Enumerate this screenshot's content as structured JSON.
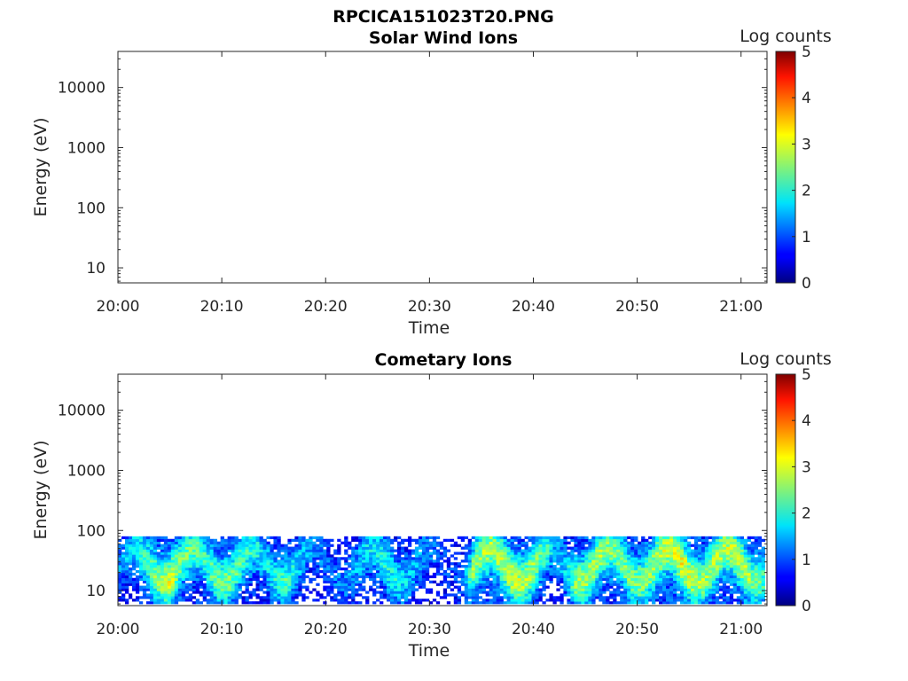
{
  "figure": {
    "title": "RPCICA151023T20.PNG"
  },
  "chart_data": [
    {
      "type": "heatmap",
      "title": "Solar Wind Ions",
      "xlabel": "Time",
      "ylabel": "Energy (eV)",
      "x_ticks": [
        "20:00",
        "20:10",
        "20:20",
        "20:30",
        "20:40",
        "20:50",
        "21:00"
      ],
      "x_range_minutes": [
        0,
        62.5
      ],
      "y_ticks": [
        "10",
        "100",
        "1000",
        "10000"
      ],
      "y_range_log10": [
        0.75,
        4.6
      ],
      "y_scale": "log",
      "colorbar": {
        "label": "Log counts",
        "ticks": [
          "0",
          "1",
          "2",
          "3",
          "4",
          "5"
        ],
        "range": [
          0,
          5
        ],
        "colormap": "jet"
      },
      "data_summary": "no counts recorded (panel empty)"
    },
    {
      "type": "heatmap",
      "title": "Cometary Ions",
      "xlabel": "Time",
      "ylabel": "Energy (eV)",
      "x_ticks": [
        "20:00",
        "20:10",
        "20:20",
        "20:30",
        "20:40",
        "20:50",
        "21:00"
      ],
      "x_range_minutes": [
        0,
        62.5
      ],
      "y_ticks": [
        "10",
        "100",
        "1000",
        "10000"
      ],
      "y_range_log10": [
        0.75,
        4.6
      ],
      "y_scale": "log",
      "colorbar": {
        "label": "Log counts",
        "ticks": [
          "0",
          "1",
          "2",
          "3",
          "4",
          "5"
        ],
        "range": [
          0,
          5
        ],
        "colormap": "jet"
      },
      "energy_band_eV": [
        6,
        80
      ],
      "time_profile": {
        "minutes": [
          0,
          2,
          4,
          5,
          6,
          8,
          10,
          12,
          14,
          16,
          18,
          20,
          22,
          24,
          26,
          28,
          30,
          31,
          32,
          33,
          34,
          36,
          38,
          40,
          41,
          42,
          43,
          44,
          46,
          48,
          50,
          52,
          54,
          56,
          58,
          60,
          62
        ],
        "peak_log_counts": [
          1.2,
          1.8,
          2.5,
          2.7,
          2.2,
          2.0,
          2.3,
          2.0,
          1.6,
          2.0,
          1.3,
          1.0,
          1.2,
          1.6,
          1.8,
          1.4,
          1.1,
          0.9,
          0.8,
          1.0,
          2.3,
          2.5,
          2.6,
          2.4,
          2.0,
          1.3,
          1.6,
          2.4,
          2.5,
          2.2,
          2.3,
          2.5,
          2.8,
          2.4,
          2.5,
          2.6,
          2.0
        ]
      }
    }
  ]
}
